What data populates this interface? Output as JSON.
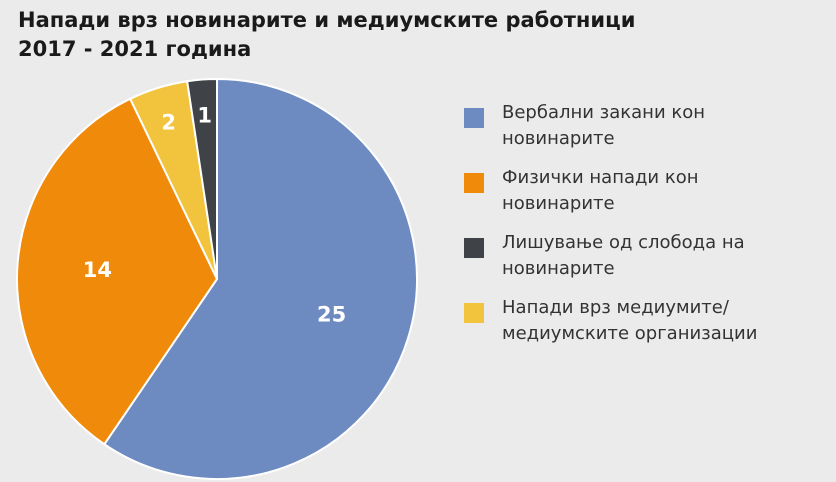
{
  "chart_data": {
    "type": "pie",
    "title_lines": [
      "Напади врз новинарите и медиумските работници",
      "2017 - 2021 година"
    ],
    "slices": [
      {
        "label_lines": [
          "Вербални закани кон",
          "новинарите"
        ],
        "value": 25,
        "color": "#6e8bc1"
      },
      {
        "label_lines": [
          "Физички напади кон",
          "новинарите"
        ],
        "value": 14,
        "color": "#f08a0a"
      },
      {
        "label_lines": [
          "Напади врз медиумите/",
          "медиумските организации"
        ],
        "value": 2,
        "color": "#f2c33c"
      },
      {
        "label_lines": [
          "Лишување од слобода на",
          "новинарите"
        ],
        "value": 1,
        "color": "#3f4347"
      }
    ],
    "legend_order": [
      0,
      1,
      3,
      2
    ],
    "legend_position": "right"
  }
}
